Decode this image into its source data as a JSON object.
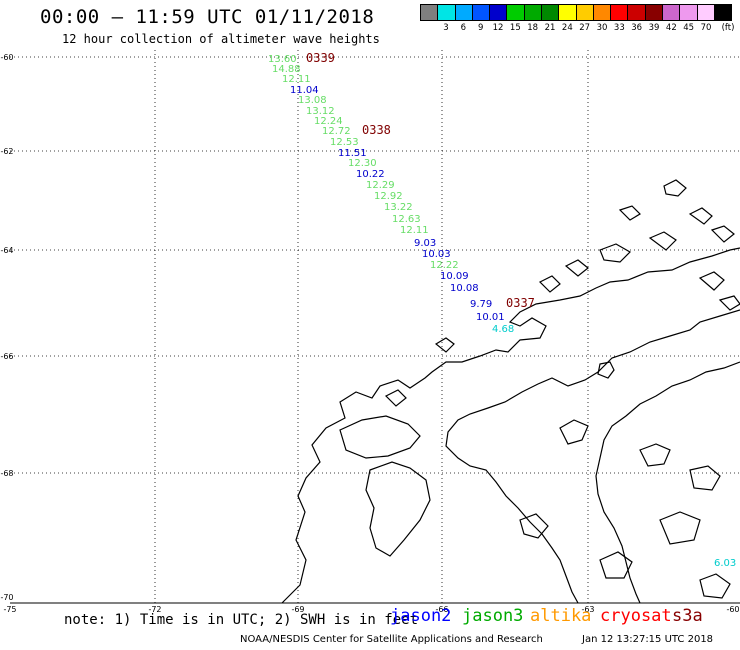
{
  "header": {
    "title": "00:00  –  11:59 UTC 01/11/2018",
    "subtitle": "12 hour collection of altimeter wave heights"
  },
  "legend": {
    "unit_label": "(ft)",
    "swatches": [
      {
        "color": "#7f7f7f",
        "label": ""
      },
      {
        "color": "#00e5e5",
        "label": "3"
      },
      {
        "color": "#00aaff",
        "label": "6"
      },
      {
        "color": "#0055ff",
        "label": "9"
      },
      {
        "color": "#0000cc",
        "label": "12"
      },
      {
        "color": "#00cc00",
        "label": "15"
      },
      {
        "color": "#00aa00",
        "label": "18"
      },
      {
        "color": "#008800",
        "label": "21"
      },
      {
        "color": "#ffff00",
        "label": "24"
      },
      {
        "color": "#ffcc00",
        "label": "27"
      },
      {
        "color": "#ff8800",
        "label": "30"
      },
      {
        "color": "#ff0000",
        "label": "33"
      },
      {
        "color": "#cc0000",
        "label": "36"
      },
      {
        "color": "#880000",
        "label": "39"
      },
      {
        "color": "#cc66cc",
        "label": "42"
      },
      {
        "color": "#ee99ee",
        "label": "45"
      },
      {
        "color": "#ffccff",
        "label": "70"
      },
      {
        "color": "#000000",
        "label": ""
      }
    ]
  },
  "map": {
    "lat_labels": [
      "-60",
      "-62",
      "-64",
      "-66",
      "-68",
      "-70"
    ],
    "lon_labels": [
      "-75",
      "-72",
      "-69",
      "-66",
      "-63",
      "-60"
    ],
    "time_labels": [
      "0339",
      "0338",
      "0337"
    ],
    "time_label_color": "#800000",
    "observations": [
      {
        "value": "13.60",
        "color": "#66dd66"
      },
      {
        "value": "14.88",
        "color": "#66dd66"
      },
      {
        "value": "12.11",
        "color": "#66dd66"
      },
      {
        "value": "11.04",
        "color": "#0000cc"
      },
      {
        "value": "13.08",
        "color": "#66dd66"
      },
      {
        "value": "13.12",
        "color": "#66dd66"
      },
      {
        "value": "12.24",
        "color": "#66dd66"
      },
      {
        "value": "12.72",
        "color": "#66dd66"
      },
      {
        "value": "12.53",
        "color": "#66dd66"
      },
      {
        "value": "11.51",
        "color": "#0000cc"
      },
      {
        "value": "12.30",
        "color": "#66dd66"
      },
      {
        "value": "10.22",
        "color": "#0000cc"
      },
      {
        "value": "12.29",
        "color": "#66dd66"
      },
      {
        "value": "12.92",
        "color": "#66dd66"
      },
      {
        "value": "13.22",
        "color": "#66dd66"
      },
      {
        "value": "12.63",
        "color": "#66dd66"
      },
      {
        "value": "12.11",
        "color": "#66dd66"
      },
      {
        "value": "9.03",
        "color": "#0000cc"
      },
      {
        "value": "10.03",
        "color": "#0000cc"
      },
      {
        "value": "12.22",
        "color": "#66dd66"
      },
      {
        "value": "10.09",
        "color": "#0000cc"
      },
      {
        "value": "10.08",
        "color": "#0000cc"
      },
      {
        "value": "9.79",
        "color": "#0000cc"
      },
      {
        "value": "10.01",
        "color": "#0000cc"
      },
      {
        "value": "4.68",
        "color": "#00cccc"
      },
      {
        "value": "6.03",
        "color": "#00cccc"
      }
    ]
  },
  "footer": {
    "note": "note: 1) Time is in UTC; 2) SWH is in feet",
    "satellites": [
      {
        "name": "jason2",
        "color": "#0000ff"
      },
      {
        "name": "jason3",
        "color": "#00aa00"
      },
      {
        "name": "altika",
        "color": "#ff9900"
      },
      {
        "name": "cryosat",
        "color": "#ff0000"
      },
      {
        "name": "s3a",
        "color": "#880000"
      }
    ],
    "credit": "NOAA/NESDIS Center for Satellite Applications and Research",
    "timestamp": "Jan 12 13:27:15 UTC 2018"
  }
}
